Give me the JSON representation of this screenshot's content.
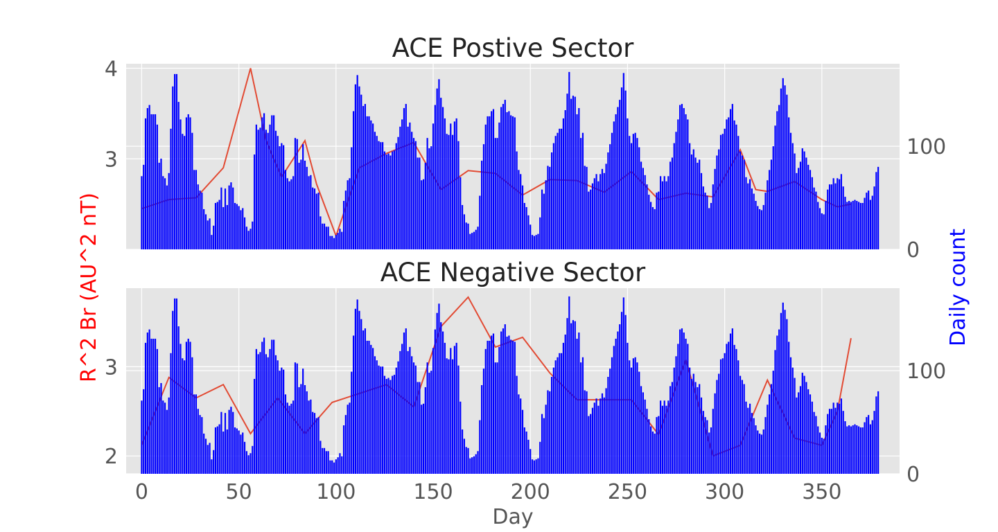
{
  "chart_data": [
    {
      "type": "bar",
      "title": "ACE Postive Sector",
      "xlabel": "",
      "ylabel": "R^2 Br (AU^2 nT)",
      "y2label": "Daily count",
      "xlim": [
        -8,
        390
      ],
      "ylim": [
        2.0,
        4.05
      ],
      "y2lim": [
        0,
        180
      ],
      "yticks": [
        3,
        4
      ],
      "y2ticks": [
        0,
        100
      ],
      "grid": true,
      "series": [
        {
          "kind": "line",
          "axis": "left",
          "color": "#e24a33",
          "x": [
            0,
            14,
            28,
            42,
            56,
            64,
            72,
            84,
            90,
            100,
            112,
            126,
            140,
            154,
            168,
            182,
            196,
            210,
            224,
            238,
            252,
            266,
            280,
            294,
            308,
            316,
            322,
            336,
            350,
            358,
            365
          ],
          "values": [
            2.45,
            2.55,
            2.57,
            2.9,
            4.0,
            3.2,
            2.8,
            3.2,
            2.72,
            2.15,
            2.9,
            3.06,
            3.18,
            2.66,
            2.87,
            2.84,
            2.6,
            2.77,
            2.76,
            2.63,
            2.86,
            2.55,
            2.62,
            2.58,
            3.1,
            2.66,
            2.64,
            2.75,
            2.55,
            2.47,
            2.5
          ]
        },
        {
          "kind": "bar",
          "axis": "right",
          "color": "#0000ff",
          "values": [
            71,
            82,
            127,
            137,
            140,
            131,
            131,
            131,
            121,
            84,
            88,
            71,
            69,
            62,
            74,
            117,
            158,
            170,
            170,
            143,
            126,
            112,
            110,
            128,
            131,
            128,
            113,
            77,
            77,
            63,
            57,
            55,
            39,
            34,
            28,
            30,
            14,
            23,
            45,
            46,
            48,
            60,
            41,
            59,
            43,
            62,
            65,
            60,
            45,
            44,
            42,
            38,
            40,
            31,
            22,
            18,
            20,
            27,
            92,
            121,
            116,
            118,
            128,
            132,
            116,
            113,
            121,
            130,
            130,
            115,
            110,
            100,
            103,
            101,
            77,
            69,
            66,
            68,
            71,
            108,
            107,
            84,
            87,
            102,
            86,
            80,
            71,
            72,
            60,
            59,
            54,
            55,
            32,
            25,
            25,
            22,
            22,
            13,
            13,
            11,
            14,
            16,
            20,
            17,
            47,
            57,
            67,
            69,
            99,
            134,
            160,
            169,
            158,
            150,
            139,
            141,
            129,
            129,
            125,
            122,
            114,
            110,
            105,
            104,
            104,
            95,
            92,
            93,
            91,
            95,
            96,
            103,
            109,
            119,
            126,
            137,
            141,
            119,
            123,
            114,
            108,
            105,
            89,
            89,
            67,
            68,
            84,
            108,
            98,
            100,
            122,
            140,
            156,
            165,
            147,
            138,
            127,
            112,
            111,
            122,
            111,
            124,
            127,
            105,
            70,
            43,
            34,
            26,
            25,
            15,
            16,
            17,
            19,
            22,
            52,
            86,
            102,
            121,
            129,
            129,
            134,
            136,
            108,
            108,
            123,
            138,
            141,
            145,
            133,
            134,
            130,
            129,
            128,
            95,
            77,
            73,
            62,
            45,
            41,
            33,
            24,
            14,
            13,
            14,
            15,
            31,
            58,
            54,
            67,
            81,
            80,
            94,
            103,
            110,
            113,
            117,
            117,
            127,
            135,
            151,
            172,
            146,
            149,
            148,
            131,
            137,
            108,
            113,
            81,
            80,
            56,
            58,
            64,
            69,
            73,
            66,
            73,
            78,
            74,
            83,
            94,
            102,
            113,
            124,
            131,
            138,
            145,
            157,
            171,
            154,
            127,
            110,
            103,
            112,
            113,
            108,
            99,
            85,
            79,
            72,
            63,
            53,
            46,
            41,
            39,
            55,
            56,
            71,
            66,
            71,
            66,
            71,
            85,
            89,
            103,
            114,
            126,
            140,
            141,
            137,
            131,
            126,
            103,
            92,
            97,
            89,
            84,
            87,
            74,
            61,
            55,
            52,
            40,
            45,
            63,
            78,
            91,
            97,
            111,
            112,
            117,
            126,
            128,
            136,
            141,
            125,
            121,
            110,
            95,
            91,
            87,
            70,
            64,
            68,
            59,
            54,
            47,
            42,
            39,
            38,
            43,
            55,
            67,
            77,
            87,
            100,
            120,
            134,
            140,
            156,
            166,
            159,
            150,
            128,
            113,
            103,
            93,
            74,
            79,
            85,
            98,
            95,
            89,
            82,
            77,
            70,
            60,
            56,
            46,
            40,
            35,
            34,
            47,
            58,
            63,
            63,
            69,
            64,
            69,
            68,
            73,
            61,
            51,
            46,
            47,
            46,
            47,
            48,
            47,
            46,
            45,
            45,
            50,
            55,
            57,
            48,
            52,
            61,
            75,
            80
          ]
        }
      ]
    },
    {
      "type": "bar",
      "title": "ACE Negative Sector",
      "xlabel": "Day",
      "ylabel": "R^2 Br (AU^2 nT)",
      "y2label": "Daily count",
      "xlim": [
        -8,
        390
      ],
      "ylim": [
        1.8,
        3.88
      ],
      "y2lim": [
        0,
        180
      ],
      "yticks": [
        2,
        3
      ],
      "y2ticks": [
        0,
        100
      ],
      "xticks": [
        0,
        50,
        100,
        150,
        200,
        250,
        300,
        350
      ],
      "grid": true,
      "series": [
        {
          "kind": "line",
          "axis": "left",
          "color": "#e24a33",
          "x": [
            0,
            14,
            28,
            42,
            56,
            70,
            84,
            98,
            112,
            126,
            140,
            154,
            168,
            182,
            196,
            210,
            224,
            238,
            252,
            266,
            280,
            294,
            308,
            322,
            336,
            350,
            358,
            365
          ],
          "values": [
            2.12,
            2.88,
            2.65,
            2.8,
            2.25,
            2.65,
            2.25,
            2.6,
            2.7,
            2.8,
            2.55,
            3.45,
            3.78,
            3.22,
            3.33,
            2.93,
            2.63,
            2.63,
            2.63,
            2.24,
            3.08,
            2.0,
            2.12,
            2.85,
            2.2,
            2.12,
            2.5,
            3.32
          ]
        },
        {
          "kind": "bar",
          "axis": "right",
          "color": "#0000ff",
          "values": [
            71,
            82,
            127,
            137,
            140,
            131,
            131,
            131,
            121,
            84,
            88,
            71,
            69,
            62,
            74,
            117,
            158,
            170,
            170,
            143,
            126,
            112,
            110,
            128,
            131,
            128,
            113,
            77,
            77,
            63,
            57,
            55,
            39,
            34,
            28,
            30,
            14,
            23,
            45,
            46,
            48,
            60,
            41,
            59,
            43,
            62,
            65,
            60,
            45,
            44,
            42,
            38,
            40,
            31,
            22,
            18,
            20,
            27,
            92,
            121,
            116,
            118,
            128,
            132,
            116,
            113,
            121,
            130,
            130,
            115,
            110,
            100,
            103,
            101,
            77,
            69,
            66,
            68,
            71,
            108,
            107,
            84,
            87,
            102,
            86,
            80,
            71,
            72,
            60,
            59,
            54,
            55,
            32,
            25,
            25,
            22,
            22,
            13,
            13,
            11,
            14,
            16,
            20,
            17,
            47,
            57,
            67,
            69,
            99,
            134,
            160,
            169,
            158,
            150,
            139,
            141,
            129,
            129,
            125,
            122,
            114,
            110,
            105,
            104,
            104,
            95,
            92,
            93,
            91,
            95,
            96,
            103,
            109,
            119,
            126,
            137,
            141,
            119,
            123,
            114,
            108,
            105,
            89,
            89,
            67,
            68,
            84,
            108,
            98,
            100,
            122,
            140,
            156,
            165,
            147,
            138,
            127,
            112,
            111,
            122,
            111,
            124,
            127,
            105,
            70,
            43,
            34,
            26,
            25,
            15,
            16,
            17,
            19,
            22,
            52,
            86,
            102,
            121,
            129,
            129,
            134,
            136,
            108,
            108,
            123,
            138,
            141,
            145,
            133,
            134,
            130,
            129,
            128,
            95,
            77,
            73,
            62,
            45,
            41,
            33,
            24,
            14,
            13,
            14,
            15,
            31,
            58,
            54,
            67,
            81,
            80,
            94,
            103,
            110,
            113,
            117,
            117,
            127,
            135,
            151,
            172,
            146,
            149,
            148,
            131,
            137,
            108,
            113,
            81,
            80,
            56,
            58,
            64,
            69,
            73,
            66,
            73,
            78,
            74,
            83,
            94,
            102,
            113,
            124,
            131,
            138,
            145,
            157,
            171,
            154,
            127,
            110,
            103,
            112,
            113,
            108,
            99,
            85,
            79,
            72,
            63,
            53,
            46,
            41,
            39,
            55,
            56,
            71,
            66,
            71,
            66,
            71,
            85,
            89,
            103,
            114,
            126,
            140,
            141,
            137,
            131,
            126,
            103,
            92,
            97,
            89,
            84,
            87,
            74,
            61,
            55,
            52,
            40,
            45,
            63,
            78,
            91,
            97,
            111,
            112,
            117,
            126,
            128,
            136,
            141,
            125,
            121,
            110,
            95,
            91,
            87,
            70,
            64,
            68,
            59,
            54,
            47,
            42,
            39,
            38,
            43,
            55,
            67,
            77,
            87,
            100,
            120,
            134,
            140,
            156,
            166,
            159,
            150,
            128,
            113,
            103,
            93,
            74,
            79,
            85,
            98,
            95,
            89,
            82,
            77,
            70,
            60,
            56,
            46,
            40,
            35,
            34,
            47,
            58,
            63,
            63,
            69,
            64,
            69,
            68,
            73,
            61,
            51,
            46,
            47,
            46,
            47,
            48,
            47,
            46,
            45,
            45,
            50,
            55,
            57,
            48,
            52,
            61,
            75,
            80
          ]
        }
      ]
    }
  ],
  "colors": {
    "panel_bg": "#e5e5e5",
    "grid": "#ffffff",
    "line": "#e24a33",
    "bars": "#0000ff",
    "ylabel": "#ff0000",
    "y2label": "#0000ff"
  }
}
